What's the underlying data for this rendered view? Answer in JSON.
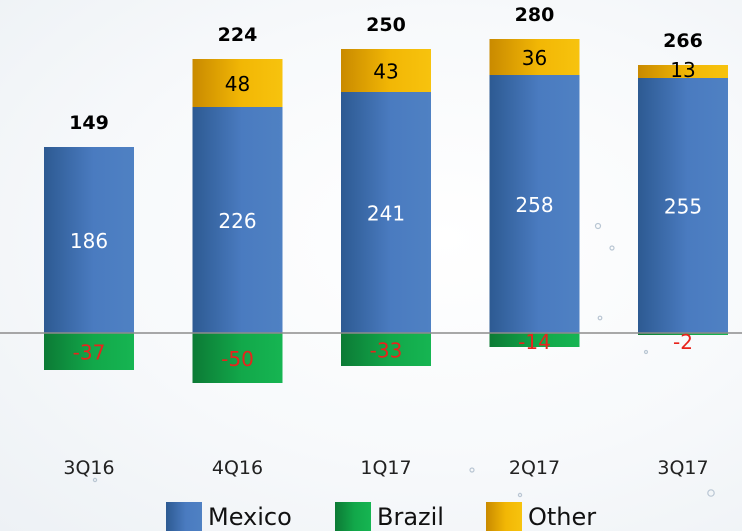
{
  "chart_data": {
    "type": "bar",
    "stacked": true,
    "title": "",
    "xlabel": "",
    "ylabel": "",
    "categories": [
      "3Q16",
      "4Q16",
      "1Q17",
      "2Q17",
      "3Q17"
    ],
    "totals": [
      149,
      224,
      250,
      280,
      266
    ],
    "series": [
      {
        "name": "Mexico",
        "color": "#4a7bc0",
        "values": [
          186,
          226,
          241,
          258,
          255
        ]
      },
      {
        "name": "Brazil",
        "color": "#12a84a",
        "values": [
          -37,
          -50,
          -33,
          -14,
          -2
        ]
      },
      {
        "name": "Other",
        "color": "#f2b705",
        "values": [
          null,
          48,
          43,
          36,
          13
        ]
      }
    ],
    "label_colors": {
      "Mexico": "#ffffff",
      "Brazil": "#e8231c",
      "Other": "#000000",
      "total": "#000000",
      "category": "#222222"
    },
    "legend": {
      "position": "bottom",
      "entries": [
        {
          "name": "Mexico",
          "color": "#4a7bc0"
        },
        {
          "name": "Brazil",
          "color": "#12a84a"
        },
        {
          "name": "Other",
          "color": "#f2b705"
        }
      ]
    },
    "grid": false
  }
}
